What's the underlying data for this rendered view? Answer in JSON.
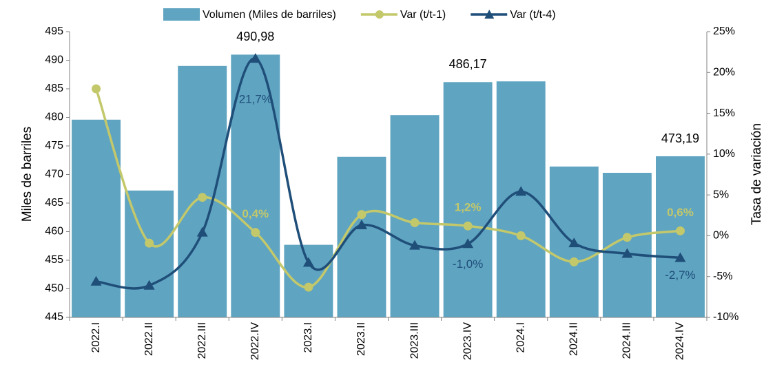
{
  "chart_data": {
    "type": "bar",
    "categories": [
      "2022.I",
      "2022.II",
      "2022.III",
      "2022.IV",
      "2023.I",
      "2023.II",
      "2023.III",
      "2023.IV",
      "2024.I",
      "2024.II",
      "2024.III",
      "2024.IV"
    ],
    "series": [
      {
        "name": "Volumen (Miles de barriles)",
        "type": "bar",
        "color": "#5fa4c1",
        "values": [
          479.6,
          467.2,
          489.0,
          490.98,
          457.7,
          473.1,
          480.4,
          486.17,
          486.3,
          471.4,
          470.3,
          473.19
        ],
        "value_labels": [
          null,
          null,
          null,
          "490,98",
          null,
          null,
          null,
          "486,17",
          null,
          null,
          null,
          "473,19"
        ]
      },
      {
        "name": "Var (t/t-1)",
        "type": "line",
        "marker": "circle",
        "axis": "y2",
        "color": "#c3c86b",
        "values": [
          18.0,
          -0.9,
          4.7,
          0.4,
          -6.3,
          2.6,
          1.6,
          1.2,
          0.0,
          -3.2,
          -0.2,
          0.6
        ],
        "value_labels": [
          null,
          null,
          null,
          "0,4%",
          null,
          null,
          null,
          "1,2%",
          null,
          null,
          null,
          "0,6%"
        ]
      },
      {
        "name": "Var (t/t-4)",
        "type": "line",
        "marker": "triangle",
        "axis": "y2",
        "color": "#1f4e79",
        "values": [
          -5.6,
          -6.1,
          0.4,
          21.7,
          -3.3,
          1.3,
          -1.2,
          -1.0,
          5.4,
          -0.9,
          -2.2,
          -2.7
        ],
        "value_labels": [
          null,
          null,
          null,
          "21,7%",
          null,
          null,
          null,
          "-1,0%",
          null,
          null,
          null,
          "-2,7%"
        ]
      }
    ],
    "ylabel": "Miles de barriles",
    "y2label": "Tasa de variación",
    "ylim": [
      445,
      495
    ],
    "yticks": [
      445,
      450,
      455,
      460,
      465,
      470,
      475,
      480,
      485,
      490,
      495
    ],
    "y2lim": [
      -10,
      25
    ],
    "y2ticks": [
      {
        "value": -10,
        "label": "-10%"
      },
      {
        "value": -5,
        "label": "-5%"
      },
      {
        "value": 0,
        "label": "0%"
      },
      {
        "value": 5,
        "label": "5%"
      },
      {
        "value": 10,
        "label": "10%"
      },
      {
        "value": 15,
        "label": "15%"
      },
      {
        "value": 20,
        "label": "20%"
      },
      {
        "value": 25,
        "label": "25%"
      }
    ],
    "legend": "top",
    "smooth": true
  }
}
